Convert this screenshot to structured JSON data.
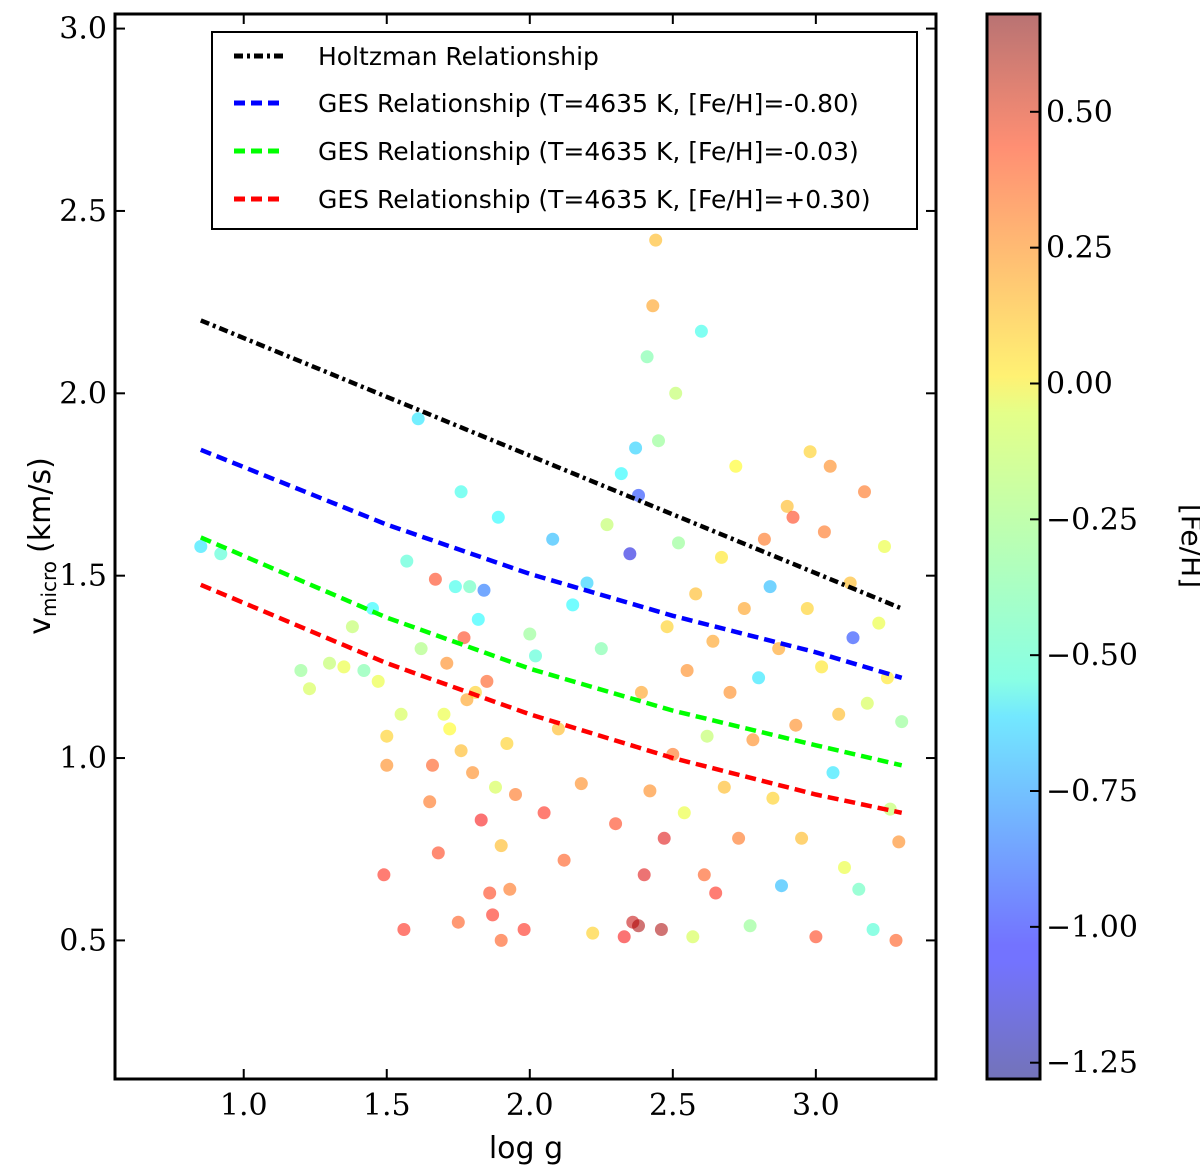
{
  "chart_data": {
    "type": "scatter",
    "title": "",
    "xlabel": "log g",
    "ylabel": "v",
    "ylabel_subscript": "micro",
    "ylabel_unit": "(km/s)",
    "xlim": [
      0.55,
      3.42
    ],
    "ylim": [
      0.12,
      3.04
    ],
    "xticks": [
      1.0,
      1.5,
      2.0,
      2.5,
      3.0
    ],
    "xtick_labels": [
      "1.0",
      "1.5",
      "2.0",
      "2.5",
      "3.0"
    ],
    "yticks": [
      0.5,
      1.0,
      1.5,
      2.0,
      2.5,
      3.0
    ],
    "ytick_labels": [
      "0.5",
      "1.0",
      "1.5",
      "2.0",
      "2.5",
      "3.0"
    ],
    "colorbar": {
      "label": "[Fe/H]",
      "range": [
        -1.28,
        0.68
      ],
      "ticks": [
        0.5,
        0.25,
        0.0,
        -0.25,
        -0.5,
        -0.75,
        -1.0,
        -1.25
      ],
      "tick_labels": [
        "0.50",
        "0.25",
        "0.00",
        "−0.25",
        "−0.50",
        "−0.75",
        "−1.00",
        "−1.25"
      ],
      "colormap": "jet"
    },
    "legend_position": "top-right",
    "lines": [
      {
        "name": "Holtzman Relationship",
        "style": "dashdot",
        "color": "#000000",
        "x": [
          0.85,
          3.3
        ],
        "y": [
          2.2,
          1.41
        ]
      },
      {
        "name": "GES Relationship (T=4635 K, [Fe/H]=-0.80)",
        "style": "dashed",
        "color": "#0000ff",
        "x": [
          0.85,
          1.5,
          2.0,
          2.5,
          3.0,
          3.3
        ],
        "y": [
          1.845,
          1.64,
          1.505,
          1.39,
          1.29,
          1.22
        ]
      },
      {
        "name": "GES Relationship (T=4635 K, [Fe/H]=-0.03)",
        "style": "dashed",
        "color": "#00ff00",
        "x": [
          0.85,
          1.5,
          2.0,
          2.5,
          3.0,
          3.3
        ],
        "y": [
          1.605,
          1.385,
          1.245,
          1.13,
          1.035,
          0.98
        ]
      },
      {
        "name": "GES Relationship (T=4635 K, [Fe/H]=+0.30)",
        "style": "dashed",
        "color": "#ff0000",
        "x": [
          0.85,
          1.5,
          2.0,
          2.5,
          3.0,
          3.3
        ],
        "y": [
          1.475,
          1.26,
          1.12,
          1.0,
          0.9,
          0.85
        ]
      }
    ],
    "legend_labels": [
      "Holtzman Relationship",
      "GES Relationship (T=4635 K, [Fe/H]=-0.80)",
      "GES Relationship (T=4635 K, [Fe/H]=-0.03)",
      "GES Relationship (T=4635 K, [Fe/H]=+0.30)"
    ],
    "points": [
      {
        "x": 0.85,
        "y": 1.58,
        "feh": -0.6
      },
      {
        "x": 0.92,
        "y": 1.56,
        "feh": -0.45
      },
      {
        "x": 1.2,
        "y": 1.24,
        "feh": -0.3
      },
      {
        "x": 1.23,
        "y": 1.19,
        "feh": -0.15
      },
      {
        "x": 1.3,
        "y": 1.26,
        "feh": -0.2
      },
      {
        "x": 1.35,
        "y": 1.25,
        "feh": -0.1
      },
      {
        "x": 1.38,
        "y": 1.36,
        "feh": -0.2
      },
      {
        "x": 1.42,
        "y": 1.24,
        "feh": -0.35
      },
      {
        "x": 1.45,
        "y": 1.41,
        "feh": -0.55
      },
      {
        "x": 1.47,
        "y": 1.21,
        "feh": -0.1
      },
      {
        "x": 1.5,
        "y": 1.06,
        "feh": 0.05
      },
      {
        "x": 1.5,
        "y": 0.98,
        "feh": 0.2
      },
      {
        "x": 1.49,
        "y": 0.68,
        "feh": 0.4
      },
      {
        "x": 1.55,
        "y": 1.12,
        "feh": -0.15
      },
      {
        "x": 1.56,
        "y": 0.53,
        "feh": 0.4
      },
      {
        "x": 1.57,
        "y": 1.54,
        "feh": -0.45
      },
      {
        "x": 1.61,
        "y": 1.93,
        "feh": -0.6
      },
      {
        "x": 1.62,
        "y": 1.3,
        "feh": -0.25
      },
      {
        "x": 1.65,
        "y": 0.88,
        "feh": 0.25
      },
      {
        "x": 1.66,
        "y": 0.98,
        "feh": 0.3
      },
      {
        "x": 1.67,
        "y": 1.49,
        "feh": 0.35
      },
      {
        "x": 1.68,
        "y": 0.74,
        "feh": 0.35
      },
      {
        "x": 1.7,
        "y": 1.12,
        "feh": -0.1
      },
      {
        "x": 1.71,
        "y": 1.26,
        "feh": 0.2
      },
      {
        "x": 1.72,
        "y": 1.08,
        "feh": -0.05
      },
      {
        "x": 1.74,
        "y": 1.47,
        "feh": -0.5
      },
      {
        "x": 1.75,
        "y": 0.55,
        "feh": 0.3
      },
      {
        "x": 1.76,
        "y": 1.73,
        "feh": -0.5
      },
      {
        "x": 1.76,
        "y": 1.02,
        "feh": 0.1
      },
      {
        "x": 1.77,
        "y": 1.33,
        "feh": 0.35
      },
      {
        "x": 1.78,
        "y": 1.16,
        "feh": 0.15
      },
      {
        "x": 1.79,
        "y": 1.47,
        "feh": -0.4
      },
      {
        "x": 1.8,
        "y": 0.96,
        "feh": 0.2
      },
      {
        "x": 1.81,
        "y": 1.18,
        "feh": 0.05
      },
      {
        "x": 1.82,
        "y": 1.38,
        "feh": -0.55
      },
      {
        "x": 1.83,
        "y": 0.83,
        "feh": 0.45
      },
      {
        "x": 1.84,
        "y": 1.46,
        "feh": -0.85
      },
      {
        "x": 1.85,
        "y": 1.21,
        "feh": 0.3
      },
      {
        "x": 1.86,
        "y": 0.63,
        "feh": 0.35
      },
      {
        "x": 1.87,
        "y": 0.57,
        "feh": 0.4
      },
      {
        "x": 1.88,
        "y": 0.92,
        "feh": -0.15
      },
      {
        "x": 1.89,
        "y": 1.66,
        "feh": -0.55
      },
      {
        "x": 1.9,
        "y": 0.76,
        "feh": 0.1
      },
      {
        "x": 1.9,
        "y": 0.5,
        "feh": 0.3
      },
      {
        "x": 1.92,
        "y": 1.04,
        "feh": 0.05
      },
      {
        "x": 1.93,
        "y": 0.64,
        "feh": 0.25
      },
      {
        "x": 1.95,
        "y": 0.9,
        "feh": 0.25
      },
      {
        "x": 1.98,
        "y": 0.53,
        "feh": 0.4
      },
      {
        "x": 2.0,
        "y": 1.34,
        "feh": -0.3
      },
      {
        "x": 2.02,
        "y": 1.28,
        "feh": -0.45
      },
      {
        "x": 2.05,
        "y": 0.85,
        "feh": 0.4
      },
      {
        "x": 2.08,
        "y": 1.6,
        "feh": -0.7
      },
      {
        "x": 2.1,
        "y": 1.08,
        "feh": 0.1
      },
      {
        "x": 2.12,
        "y": 0.72,
        "feh": 0.3
      },
      {
        "x": 2.15,
        "y": 1.42,
        "feh": -0.55
      },
      {
        "x": 2.18,
        "y": 0.93,
        "feh": 0.2
      },
      {
        "x": 2.2,
        "y": 1.48,
        "feh": -0.65
      },
      {
        "x": 2.22,
        "y": 0.52,
        "feh": 0.05
      },
      {
        "x": 2.25,
        "y": 1.3,
        "feh": -0.35
      },
      {
        "x": 2.27,
        "y": 1.64,
        "feh": -0.2
      },
      {
        "x": 2.3,
        "y": 0.82,
        "feh": 0.35
      },
      {
        "x": 2.32,
        "y": 1.78,
        "feh": -0.55
      },
      {
        "x": 2.33,
        "y": 0.51,
        "feh": 0.45
      },
      {
        "x": 2.35,
        "y": 1.56,
        "feh": -1.1
      },
      {
        "x": 2.36,
        "y": 0.55,
        "feh": 0.55
      },
      {
        "x": 2.37,
        "y": 1.85,
        "feh": -0.65
      },
      {
        "x": 2.38,
        "y": 1.72,
        "feh": -0.95
      },
      {
        "x": 2.38,
        "y": 0.54,
        "feh": 0.6
      },
      {
        "x": 2.39,
        "y": 1.18,
        "feh": 0.15
      },
      {
        "x": 2.4,
        "y": 0.68,
        "feh": 0.5
      },
      {
        "x": 2.41,
        "y": 2.1,
        "feh": -0.35
      },
      {
        "x": 2.42,
        "y": 0.91,
        "feh": 0.2
      },
      {
        "x": 2.43,
        "y": 2.24,
        "feh": 0.15
      },
      {
        "x": 2.44,
        "y": 2.42,
        "feh": 0.1
      },
      {
        "x": 2.45,
        "y": 1.87,
        "feh": -0.3
      },
      {
        "x": 2.46,
        "y": 0.53,
        "feh": 0.6
      },
      {
        "x": 2.47,
        "y": 0.78,
        "feh": 0.5
      },
      {
        "x": 2.48,
        "y": 1.36,
        "feh": 0.05
      },
      {
        "x": 2.5,
        "y": 1.01,
        "feh": 0.25
      },
      {
        "x": 2.51,
        "y": 2.0,
        "feh": -0.2
      },
      {
        "x": 2.52,
        "y": 1.59,
        "feh": -0.3
      },
      {
        "x": 2.54,
        "y": 0.85,
        "feh": -0.1
      },
      {
        "x": 2.55,
        "y": 1.24,
        "feh": 0.2
      },
      {
        "x": 2.57,
        "y": 0.51,
        "feh": -0.15
      },
      {
        "x": 2.58,
        "y": 1.45,
        "feh": 0.1
      },
      {
        "x": 2.6,
        "y": 2.17,
        "feh": -0.5
      },
      {
        "x": 2.61,
        "y": 0.68,
        "feh": 0.3
      },
      {
        "x": 2.62,
        "y": 1.06,
        "feh": -0.2
      },
      {
        "x": 2.64,
        "y": 1.32,
        "feh": 0.15
      },
      {
        "x": 2.65,
        "y": 0.63,
        "feh": 0.4
      },
      {
        "x": 2.67,
        "y": 1.55,
        "feh": 0.0
      },
      {
        "x": 2.68,
        "y": 0.92,
        "feh": 0.1
      },
      {
        "x": 2.7,
        "y": 1.18,
        "feh": 0.2
      },
      {
        "x": 2.72,
        "y": 1.8,
        "feh": -0.05
      },
      {
        "x": 2.73,
        "y": 0.78,
        "feh": 0.25
      },
      {
        "x": 2.75,
        "y": 1.41,
        "feh": 0.15
      },
      {
        "x": 2.77,
        "y": 0.54,
        "feh": -0.3
      },
      {
        "x": 2.78,
        "y": 1.05,
        "feh": 0.2
      },
      {
        "x": 2.8,
        "y": 1.22,
        "feh": -0.6
      },
      {
        "x": 2.82,
        "y": 1.6,
        "feh": 0.25
      },
      {
        "x": 2.84,
        "y": 1.47,
        "feh": -0.7
      },
      {
        "x": 2.85,
        "y": 0.89,
        "feh": 0.05
      },
      {
        "x": 2.87,
        "y": 1.3,
        "feh": 0.15
      },
      {
        "x": 2.88,
        "y": 0.65,
        "feh": -0.7
      },
      {
        "x": 2.9,
        "y": 1.69,
        "feh": 0.1
      },
      {
        "x": 2.92,
        "y": 1.66,
        "feh": 0.35
      },
      {
        "x": 2.93,
        "y": 1.09,
        "feh": 0.2
      },
      {
        "x": 2.95,
        "y": 0.78,
        "feh": 0.1
      },
      {
        "x": 2.97,
        "y": 1.41,
        "feh": 0.05
      },
      {
        "x": 2.98,
        "y": 1.84,
        "feh": 0.05
      },
      {
        "x": 3.0,
        "y": 0.51,
        "feh": 0.35
      },
      {
        "x": 3.02,
        "y": 1.25,
        "feh": 0.0
      },
      {
        "x": 3.03,
        "y": 1.62,
        "feh": 0.25
      },
      {
        "x": 3.05,
        "y": 1.8,
        "feh": 0.2
      },
      {
        "x": 3.06,
        "y": 0.96,
        "feh": -0.6
      },
      {
        "x": 3.08,
        "y": 1.12,
        "feh": 0.1
      },
      {
        "x": 3.1,
        "y": 0.7,
        "feh": -0.1
      },
      {
        "x": 3.12,
        "y": 1.48,
        "feh": 0.1
      },
      {
        "x": 3.13,
        "y": 1.33,
        "feh": -0.95
      },
      {
        "x": 3.15,
        "y": 0.64,
        "feh": -0.4
      },
      {
        "x": 3.17,
        "y": 1.73,
        "feh": 0.25
      },
      {
        "x": 3.18,
        "y": 1.15,
        "feh": -0.15
      },
      {
        "x": 3.2,
        "y": 0.53,
        "feh": -0.45
      },
      {
        "x": 3.22,
        "y": 1.37,
        "feh": -0.1
      },
      {
        "x": 3.24,
        "y": 1.58,
        "feh": -0.1
      },
      {
        "x": 3.25,
        "y": 1.22,
        "feh": 0.0
      },
      {
        "x": 3.26,
        "y": 0.86,
        "feh": -0.2
      },
      {
        "x": 3.28,
        "y": 0.5,
        "feh": 0.3
      },
      {
        "x": 3.29,
        "y": 0.77,
        "feh": 0.2
      },
      {
        "x": 3.3,
        "y": 1.1,
        "feh": -0.3
      }
    ]
  }
}
